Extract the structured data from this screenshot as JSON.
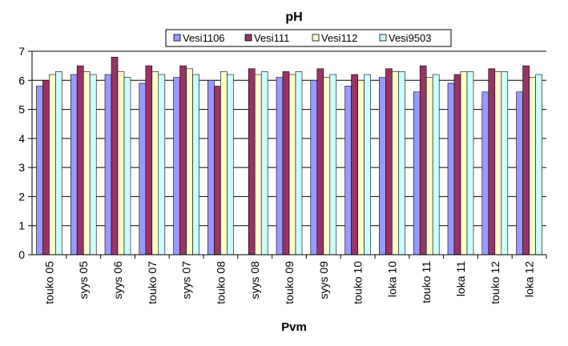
{
  "chart_data": {
    "type": "bar",
    "title": "pH",
    "xlabel": "Pvm",
    "ylabel": "",
    "ylim": [
      0,
      7
    ],
    "yticks": [
      "0",
      "1",
      "2",
      "3",
      "4",
      "5",
      "6",
      "7"
    ],
    "grid": true,
    "legend_position": "top",
    "categories": [
      "touko 05",
      "syys 05",
      "syys 06",
      "touko 07",
      "syys 07",
      "touko 08",
      "syys 08",
      "touko 09",
      "syys 09",
      "touko 10",
      "loka 10",
      "touko 11",
      "loka 11",
      "touko 12",
      "loka 12"
    ],
    "series": [
      {
        "name": "Vesi1106",
        "color": "#9999ff",
        "values": [
          5.8,
          6.2,
          6.2,
          5.9,
          6.1,
          6.0,
          null,
          6.1,
          6.0,
          5.8,
          6.1,
          5.6,
          5.9,
          5.6,
          5.6
        ]
      },
      {
        "name": "Vesi111",
        "color": "#993366",
        "values": [
          6.0,
          6.5,
          6.8,
          6.5,
          6.5,
          5.8,
          6.4,
          6.3,
          6.4,
          6.2,
          6.4,
          6.5,
          6.2,
          6.4,
          6.5
        ]
      },
      {
        "name": "Vesi112",
        "color": "#ffffcc",
        "values": [
          6.2,
          6.3,
          6.3,
          6.3,
          6.4,
          6.3,
          6.2,
          6.2,
          6.1,
          6.0,
          6.3,
          6.1,
          6.3,
          6.3,
          6.1
        ]
      },
      {
        "name": "Vesi9503",
        "color": "#ccffff",
        "values": [
          6.3,
          6.2,
          6.1,
          6.2,
          6.2,
          6.2,
          6.3,
          6.3,
          6.2,
          6.2,
          6.3,
          6.2,
          6.3,
          6.3,
          6.2
        ]
      }
    ]
  }
}
